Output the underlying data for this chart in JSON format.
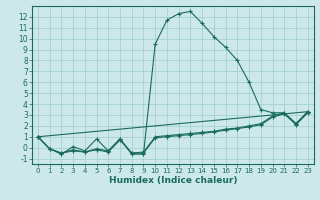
{
  "xlabel": "Humidex (Indice chaleur)",
  "bg_color": "#cce8e8",
  "grid_color": "#9ecece",
  "line_color": "#1a6b5e",
  "xlim": [
    -0.5,
    23.5
  ],
  "ylim": [
    -1.5,
    13.0
  ],
  "xticks": [
    0,
    1,
    2,
    3,
    4,
    5,
    6,
    7,
    8,
    9,
    10,
    11,
    12,
    13,
    14,
    15,
    16,
    17,
    18,
    19,
    20,
    21,
    22,
    23
  ],
  "yticks": [
    -1,
    0,
    1,
    2,
    3,
    4,
    5,
    6,
    7,
    8,
    9,
    10,
    11,
    12
  ],
  "series": [
    {
      "x": [
        0,
        1,
        2,
        3,
        4,
        5,
        6,
        7,
        8,
        9,
        10,
        11,
        12,
        13,
        14,
        15,
        16,
        17,
        18,
        19,
        20,
        21,
        22,
        23
      ],
      "y": [
        1.0,
        -0.1,
        -0.6,
        0.1,
        -0.3,
        0.8,
        -0.3,
        0.8,
        -0.6,
        -0.6,
        9.5,
        11.7,
        12.3,
        12.5,
        11.4,
        10.2,
        9.2,
        8.0,
        6.0,
        3.5,
        3.2,
        3.2,
        2.2,
        3.3
      ]
    },
    {
      "x": [
        0,
        1,
        2,
        3,
        4,
        5,
        6,
        7,
        8,
        9,
        10,
        11,
        12,
        13,
        14,
        15,
        16,
        17,
        18,
        19,
        20,
        21,
        22,
        23
      ],
      "y": [
        1.0,
        -0.1,
        -0.5,
        -0.2,
        -0.4,
        -0.1,
        -0.3,
        0.8,
        -0.5,
        -0.4,
        1.0,
        1.1,
        1.2,
        1.3,
        1.4,
        1.5,
        1.7,
        1.8,
        2.0,
        2.2,
        2.9,
        3.2,
        2.2,
        3.3
      ]
    },
    {
      "x": [
        0,
        1,
        2,
        3,
        4,
        5,
        6,
        7,
        8,
        9,
        10,
        11,
        12,
        13,
        14,
        15,
        16,
        17,
        18,
        19,
        20,
        21,
        22,
        23
      ],
      "y": [
        1.0,
        -0.1,
        -0.5,
        -0.3,
        -0.4,
        -0.2,
        -0.4,
        0.7,
        -0.5,
        -0.5,
        0.9,
        1.0,
        1.1,
        1.2,
        1.3,
        1.45,
        1.6,
        1.75,
        1.9,
        2.1,
        2.8,
        3.1,
        2.1,
        3.2
      ]
    },
    {
      "x": [
        0,
        23
      ],
      "y": [
        1.0,
        3.3
      ]
    }
  ]
}
